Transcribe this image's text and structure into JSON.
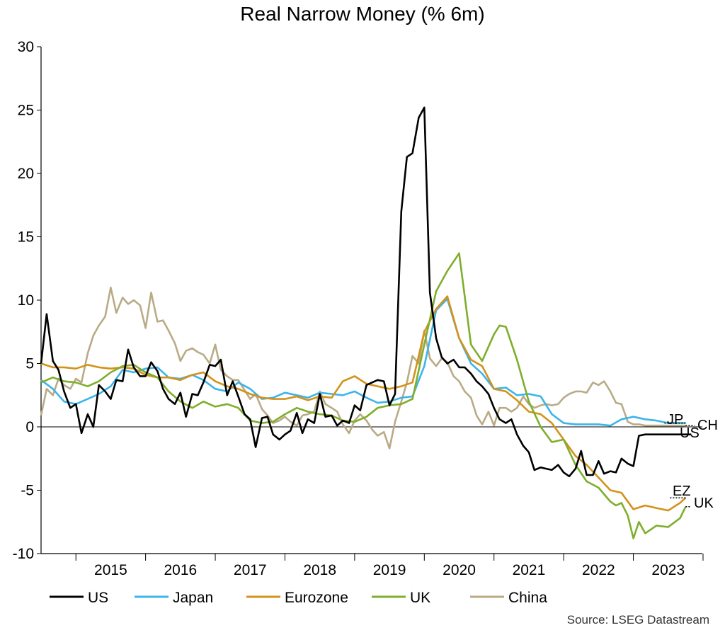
{
  "chart_data": {
    "type": "line",
    "title": "Real Narrow Money (% 6m)",
    "ylim": [
      -10,
      30
    ],
    "yticks": [
      -10,
      -5,
      0,
      5,
      10,
      15,
      20,
      25,
      30
    ],
    "xlim": [
      2014.5,
      2023.99
    ],
    "xticks": [
      "2015",
      "2016",
      "2017",
      "2018",
      "2019",
      "2020",
      "2021",
      "2022",
      "2023"
    ],
    "grid": false,
    "legend_position": "bottom",
    "end_labels": [
      "JP",
      "CH",
      "US",
      "EZ",
      "UK"
    ],
    "source": "Source: LSEG Datastream",
    "series": [
      {
        "name": "US",
        "color": "#000000",
        "x": [
          2014.5,
          2014.58,
          2014.67,
          2014.75,
          2014.83,
          2014.92,
          2015.0,
          2015.08,
          2015.17,
          2015.25,
          2015.33,
          2015.42,
          2015.5,
          2015.58,
          2015.67,
          2015.75,
          2015.83,
          2015.92,
          2016.0,
          2016.08,
          2016.17,
          2016.25,
          2016.33,
          2016.42,
          2016.5,
          2016.58,
          2016.67,
          2016.75,
          2016.83,
          2016.92,
          2017.0,
          2017.08,
          2017.17,
          2017.25,
          2017.33,
          2017.42,
          2017.5,
          2017.58,
          2017.67,
          2017.75,
          2017.83,
          2017.92,
          2018.0,
          2018.08,
          2018.17,
          2018.25,
          2018.33,
          2018.42,
          2018.5,
          2018.58,
          2018.67,
          2018.75,
          2018.83,
          2018.92,
          2019.0,
          2019.08,
          2019.17,
          2019.25,
          2019.33,
          2019.42,
          2019.5,
          2019.58,
          2019.67,
          2019.75,
          2019.83,
          2019.92,
          2020.0,
          2020.08,
          2020.17,
          2020.25,
          2020.33,
          2020.42,
          2020.5,
          2020.58,
          2020.67,
          2020.75,
          2020.83,
          2020.92,
          2021.0,
          2021.08,
          2021.17,
          2021.25,
          2021.33,
          2021.42,
          2021.5,
          2021.58,
          2021.67,
          2021.75,
          2021.83,
          2021.92,
          2022.0,
          2022.08,
          2022.17,
          2022.25,
          2022.33,
          2022.42,
          2022.5,
          2022.58,
          2022.67,
          2022.75,
          2022.83,
          2022.92,
          2023.0,
          2023.08,
          2023.17,
          2023.25,
          2023.33,
          2023.42,
          2023.5,
          2023.58,
          2023.67,
          2023.75,
          2023.83
        ],
        "values": [
          5.0,
          8.9,
          5.2,
          4.5,
          2.8,
          1.5,
          1.8,
          -0.5,
          1.0,
          0.0,
          3.3,
          2.8,
          2.2,
          3.7,
          3.6,
          6.1,
          4.7,
          4.0,
          4.0,
          5.1,
          4.4,
          3.0,
          2.2,
          1.8,
          2.7,
          0.8,
          2.6,
          2.5,
          3.5,
          4.9,
          4.8,
          5.3,
          2.5,
          3.6,
          2.4,
          1.0,
          0.6,
          -1.6,
          0.7,
          0.8,
          -0.6,
          -1.0,
          -0.6,
          -0.3,
          1.1,
          -0.5,
          0.6,
          0.3,
          2.6,
          0.8,
          0.9,
          0.1,
          0.5,
          0.3,
          1.7,
          1.3,
          3.3,
          3.5,
          3.7,
          3.6,
          1.7,
          2.6,
          17.0,
          21.3,
          21.6,
          24.4,
          25.2,
          10.6,
          7.0,
          5.5,
          5.0,
          5.3,
          4.7,
          4.7,
          4.2,
          3.6,
          3.2,
          2.6,
          1.5,
          0.6,
          0.3,
          0.6,
          -0.6,
          -1.5,
          -2.0,
          -3.4,
          -3.2,
          -3.3,
          -3.4,
          -3.0,
          -3.6,
          -3.9,
          -3.3,
          -1.9,
          -3.8,
          -3.8,
          -2.7,
          -3.7,
          -3.5,
          -3.6,
          -2.5,
          -2.9,
          -3.1,
          -0.7,
          -0.6,
          -0.6,
          -0.6,
          -0.6,
          -0.6,
          -0.6,
          -0.6,
          -0.6,
          -0.6
        ]
      },
      {
        "name": "Japan",
        "color": "#3db4ea",
        "x": [
          2014.5,
          2014.67,
          2014.83,
          2015.0,
          2015.17,
          2015.33,
          2015.5,
          2015.67,
          2015.83,
          2016.0,
          2016.17,
          2016.33,
          2016.5,
          2016.67,
          2016.83,
          2017.0,
          2017.17,
          2017.33,
          2017.5,
          2017.67,
          2017.83,
          2018.0,
          2018.17,
          2018.33,
          2018.5,
          2018.67,
          2018.83,
          2019.0,
          2019.17,
          2019.33,
          2019.5,
          2019.67,
          2019.83,
          2020.0,
          2020.17,
          2020.33,
          2020.5,
          2020.67,
          2020.83,
          2021.0,
          2021.17,
          2021.33,
          2021.5,
          2021.67,
          2021.83,
          2022.0,
          2022.17,
          2022.33,
          2022.5,
          2022.67,
          2022.83,
          2023.0,
          2023.17,
          2023.33,
          2023.5,
          2023.67,
          2023.75
        ],
        "values": [
          3.7,
          3.0,
          2.0,
          1.8,
          2.2,
          2.6,
          3.2,
          4.5,
          4.3,
          4.6,
          4.7,
          3.9,
          3.8,
          4.1,
          3.7,
          3.0,
          2.8,
          3.5,
          3.0,
          2.2,
          2.3,
          2.7,
          2.5,
          2.3,
          2.7,
          2.6,
          2.5,
          2.8,
          2.3,
          1.9,
          2.0,
          2.3,
          2.4,
          4.8,
          9.2,
          10.1,
          7.0,
          5.0,
          4.2,
          3.0,
          3.1,
          2.5,
          2.6,
          2.4,
          1.0,
          0.3,
          0.2,
          0.2,
          0.2,
          0.1,
          0.6,
          0.8,
          0.6,
          0.5,
          0.3,
          0.3,
          0.3
        ]
      },
      {
        "name": "Eurozone",
        "color": "#d4921a",
        "x": [
          2014.5,
          2014.67,
          2014.83,
          2015.0,
          2015.17,
          2015.33,
          2015.5,
          2015.67,
          2015.83,
          2016.0,
          2016.17,
          2016.33,
          2016.5,
          2016.67,
          2016.83,
          2017.0,
          2017.17,
          2017.33,
          2017.5,
          2017.67,
          2017.83,
          2018.0,
          2018.17,
          2018.33,
          2018.5,
          2018.67,
          2018.83,
          2019.0,
          2019.17,
          2019.33,
          2019.5,
          2019.67,
          2019.83,
          2020.0,
          2020.17,
          2020.33,
          2020.5,
          2020.67,
          2020.83,
          2021.0,
          2021.17,
          2021.33,
          2021.5,
          2021.67,
          2021.83,
          2022.0,
          2022.17,
          2022.33,
          2022.5,
          2022.67,
          2022.83,
          2023.0,
          2023.17,
          2023.33,
          2023.5,
          2023.67,
          2023.75
        ],
        "values": [
          5.0,
          4.7,
          4.7,
          4.6,
          4.9,
          4.7,
          4.6,
          4.7,
          4.6,
          4.1,
          3.9,
          3.9,
          3.7,
          4.1,
          4.3,
          3.6,
          3.2,
          3.0,
          2.6,
          2.3,
          2.2,
          2.2,
          2.4,
          2.1,
          2.4,
          2.3,
          3.6,
          4.0,
          3.4,
          3.2,
          3.0,
          3.2,
          3.5,
          7.5,
          9.3,
          10.3,
          7.0,
          5.3,
          4.8,
          3.0,
          2.8,
          2.1,
          1.2,
          1.0,
          0.3,
          -1.0,
          -2.3,
          -3.0,
          -4.0,
          -5.0,
          -5.2,
          -6.5,
          -6.2,
          -6.4,
          -6.6,
          -6.0,
          -5.6
        ]
      },
      {
        "name": "UK",
        "color": "#7fae2c",
        "x": [
          2014.5,
          2014.67,
          2014.83,
          2015.0,
          2015.17,
          2015.33,
          2015.5,
          2015.67,
          2015.83,
          2016.0,
          2016.17,
          2016.33,
          2016.5,
          2016.67,
          2016.83,
          2017.0,
          2017.17,
          2017.33,
          2017.5,
          2017.67,
          2017.83,
          2018.0,
          2018.17,
          2018.33,
          2018.5,
          2018.67,
          2018.83,
          2019.0,
          2019.17,
          2019.33,
          2019.5,
          2019.67,
          2019.83,
          2020.0,
          2020.17,
          2020.33,
          2020.5,
          2020.67,
          2020.83,
          2021.0,
          2021.08,
          2021.17,
          2021.33,
          2021.5,
          2021.67,
          2021.83,
          2022.0,
          2022.17,
          2022.33,
          2022.5,
          2022.67,
          2022.75,
          2022.83,
          2022.92,
          2023.0,
          2023.08,
          2023.17,
          2023.33,
          2023.5,
          2023.67,
          2023.75
        ],
        "values": [
          3.5,
          3.9,
          3.6,
          3.5,
          3.2,
          3.6,
          4.3,
          4.8,
          4.9,
          4.3,
          3.9,
          2.8,
          2.0,
          1.5,
          2.0,
          1.6,
          1.8,
          1.5,
          0.5,
          0.3,
          0.4,
          1.0,
          1.5,
          1.2,
          1.0,
          0.9,
          0.5,
          0.4,
          0.8,
          1.5,
          1.7,
          1.8,
          2.2,
          6.5,
          10.7,
          12.3,
          13.7,
          6.5,
          5.2,
          7.3,
          8.0,
          7.9,
          5.3,
          2.0,
          0.0,
          -1.2,
          -1.0,
          -3.0,
          -4.3,
          -4.8,
          -5.9,
          -6.2,
          -6.0,
          -7.0,
          -8.8,
          -7.5,
          -8.4,
          -7.8,
          -7.9,
          -7.2,
          -6.3
        ]
      },
      {
        "name": "China",
        "color": "#b8ab86",
        "x": [
          2014.5,
          2014.58,
          2014.67,
          2014.75,
          2014.83,
          2014.92,
          2015.0,
          2015.08,
          2015.17,
          2015.25,
          2015.33,
          2015.42,
          2015.5,
          2015.58,
          2015.67,
          2015.75,
          2015.83,
          2015.92,
          2016.0,
          2016.08,
          2016.17,
          2016.25,
          2016.33,
          2016.42,
          2016.5,
          2016.58,
          2016.67,
          2016.75,
          2016.83,
          2016.92,
          2017.0,
          2017.08,
          2017.17,
          2017.25,
          2017.33,
          2017.42,
          2017.5,
          2017.58,
          2017.67,
          2017.75,
          2017.83,
          2017.92,
          2018.0,
          2018.08,
          2018.17,
          2018.25,
          2018.33,
          2018.42,
          2018.5,
          2018.58,
          2018.67,
          2018.75,
          2018.83,
          2018.92,
          2019.0,
          2019.08,
          2019.17,
          2019.25,
          2019.33,
          2019.42,
          2019.5,
          2019.58,
          2019.67,
          2019.75,
          2019.83,
          2019.92,
          2020.0,
          2020.08,
          2020.17,
          2020.25,
          2020.33,
          2020.42,
          2020.5,
          2020.58,
          2020.67,
          2020.75,
          2020.83,
          2020.92,
          2021.0,
          2021.08,
          2021.17,
          2021.25,
          2021.33,
          2021.42,
          2021.5,
          2021.58,
          2021.67,
          2021.75,
          2021.83,
          2021.92,
          2022.0,
          2022.08,
          2022.17,
          2022.25,
          2022.33,
          2022.42,
          2022.5,
          2022.58,
          2022.67,
          2022.75,
          2022.83,
          2022.92,
          2023.0,
          2023.08,
          2023.17,
          2023.25,
          2023.33,
          2023.42,
          2023.5,
          2023.58,
          2023.67,
          2023.75
        ],
        "values": [
          0.9,
          3.0,
          2.5,
          3.8,
          3.3,
          3.0,
          3.8,
          3.5,
          5.8,
          7.2,
          8.0,
          8.7,
          11.0,
          9.0,
          10.2,
          9.7,
          10.0,
          9.6,
          7.8,
          10.6,
          8.3,
          8.4,
          7.6,
          6.6,
          5.2,
          6.0,
          6.2,
          5.9,
          5.7,
          5.0,
          6.5,
          4.5,
          4.0,
          3.7,
          3.7,
          2.9,
          2.2,
          2.6,
          1.4,
          0.9,
          0.3,
          0.5,
          0.8,
          0.4,
          0.1,
          0.9,
          1.0,
          1.2,
          2.8,
          1.8,
          1.5,
          1.2,
          0.2,
          -0.5,
          0.5,
          1.0,
          0.5,
          -0.2,
          -0.7,
          -0.4,
          -1.7,
          0.4,
          2.0,
          3.5,
          5.6,
          5.0,
          7.6,
          5.4,
          4.8,
          5.4,
          5.1,
          4.0,
          3.6,
          2.8,
          2.3,
          0.9,
          0.2,
          1.2,
          0.1,
          1.5,
          1.5,
          1.2,
          1.5,
          2.4,
          1.8,
          1.5,
          1.7,
          1.8,
          1.7,
          1.8,
          2.3,
          2.6,
          2.8,
          2.8,
          2.7,
          3.5,
          3.3,
          3.6,
          2.8,
          1.9,
          1.8,
          0.4,
          0.2,
          0.2,
          0.1,
          0.1,
          0.1,
          0.1,
          0.1,
          0.1,
          0.1,
          0.1
        ]
      }
    ]
  }
}
